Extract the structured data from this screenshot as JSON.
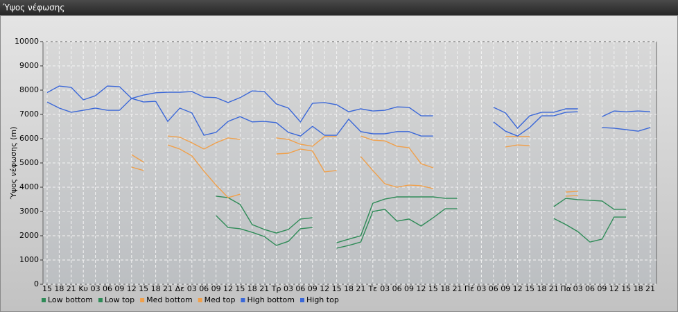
{
  "chart_data": {
    "type": "line",
    "title": "Ύψος νέφωσης",
    "y_label": "Ύψος νέφωσης (m)",
    "categories": [
      "15",
      "18",
      "21",
      "Κυ",
      "03",
      "06",
      "09",
      "12",
      "15",
      "18",
      "21",
      "Δε",
      "03",
      "06",
      "09",
      "12",
      "15",
      "18",
      "21",
      "Τρ",
      "03",
      "06",
      "09",
      "12",
      "15",
      "18",
      "21",
      "Τε",
      "03",
      "06",
      "09",
      "12",
      "15",
      "18",
      "21",
      "Πέ",
      "03",
      "06",
      "09",
      "12",
      "15",
      "18",
      "21",
      "Πα",
      "03",
      "06",
      "09",
      "12",
      "15",
      "18",
      "21"
    ],
    "series": [
      {
        "name": "Low bottom",
        "color": "#2e8b57",
        "values": [
          null,
          null,
          null,
          null,
          null,
          null,
          null,
          null,
          null,
          null,
          null,
          null,
          null,
          null,
          2830,
          2340,
          2290,
          2140,
          1970,
          1600,
          1770,
          2290,
          2340,
          null,
          1490,
          1600,
          1740,
          3000,
          3090,
          2600,
          2690,
          2400,
          2740,
          3110,
          3110,
          null,
          null,
          null,
          null,
          null,
          null,
          null,
          2710,
          2460,
          2170,
          1740,
          1860,
          2770,
          2770,
          null,
          null
        ]
      },
      {
        "name": "Low top",
        "color": "#2e8b57",
        "values": [
          null,
          null,
          null,
          null,
          null,
          null,
          null,
          null,
          null,
          null,
          null,
          null,
          null,
          null,
          3630,
          3570,
          3290,
          2460,
          2260,
          2110,
          2260,
          2690,
          2740,
          null,
          1710,
          1860,
          2000,
          3340,
          3510,
          3600,
          3600,
          3600,
          3600,
          3540,
          3540,
          null,
          null,
          null,
          null,
          null,
          null,
          null,
          3200,
          3540,
          3490,
          3460,
          3430,
          3090,
          3090,
          null,
          null
        ]
      },
      {
        "name": "Med bottom",
        "color": "#f0a04b",
        "values": [
          null,
          null,
          null,
          null,
          null,
          null,
          null,
          4830,
          4690,
          null,
          5740,
          5570,
          5290,
          4660,
          4090,
          3570,
          3710,
          null,
          null,
          5370,
          5400,
          5570,
          5490,
          4630,
          4690,
          null,
          5260,
          4690,
          4140,
          4000,
          4090,
          4060,
          3940,
          null,
          null,
          null,
          null,
          null,
          5660,
          5740,
          5710,
          null,
          null,
          3630,
          3660,
          null,
          null,
          null,
          null,
          null,
          null
        ]
      },
      {
        "name": "Med top",
        "color": "#f0a04b",
        "values": [
          null,
          null,
          null,
          null,
          null,
          null,
          null,
          5340,
          5030,
          null,
          6110,
          6060,
          5830,
          5570,
          5830,
          6030,
          5970,
          null,
          null,
          6030,
          5970,
          5770,
          5690,
          6090,
          6090,
          null,
          6110,
          5940,
          5910,
          5690,
          5630,
          4970,
          4800,
          null,
          null,
          null,
          null,
          null,
          6090,
          6090,
          6090,
          null,
          null,
          3800,
          3830,
          null,
          null,
          null,
          null,
          null,
          null
        ]
      },
      {
        "name": "High bottom",
        "color": "#3a67d8",
        "values": [
          7510,
          7260,
          7090,
          7170,
          7260,
          7170,
          7170,
          7660,
          7510,
          7540,
          6710,
          7260,
          7060,
          6140,
          6260,
          6710,
          6910,
          6690,
          6710,
          6660,
          6260,
          6110,
          6510,
          6140,
          6140,
          6800,
          6290,
          6200,
          6200,
          6290,
          6290,
          6110,
          6110,
          null,
          null,
          null,
          null,
          6690,
          6310,
          6110,
          6460,
          6940,
          6940,
          7090,
          7110,
          null,
          6460,
          6430,
          6370,
          6310,
          6460
        ]
      },
      {
        "name": "High top",
        "color": "#3a67d8",
        "values": [
          7900,
          8170,
          8110,
          7600,
          7770,
          8170,
          8140,
          7660,
          7800,
          7890,
          7910,
          7910,
          7940,
          7710,
          7690,
          7490,
          7690,
          7970,
          7940,
          7430,
          7260,
          6690,
          7460,
          7490,
          7400,
          7110,
          7230,
          7140,
          7170,
          7310,
          7290,
          6940,
          6940,
          null,
          null,
          null,
          null,
          7290,
          7060,
          6430,
          6940,
          7090,
          7090,
          7230,
          7230,
          null,
          6910,
          7140,
          7110,
          7140,
          7110
        ]
      }
    ],
    "ylim": [
      0,
      10000
    ],
    "yticks": [
      0,
      1000,
      2000,
      3000,
      4000,
      5000,
      6000,
      7000,
      8000,
      9000,
      10000
    ],
    "grid": true
  }
}
